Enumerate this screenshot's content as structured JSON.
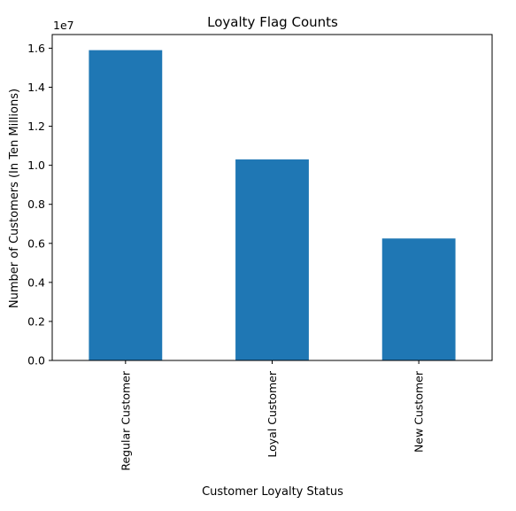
{
  "chart_data": {
    "type": "bar",
    "title": "Loyalty Flag Counts",
    "xlabel": "Customer Loyalty Status",
    "ylabel": "Number of Customers (In Ten Millions)",
    "y_offset_label": "1e7",
    "categories": [
      "Regular Customer",
      "Loyal Customer",
      "New Customer"
    ],
    "values": [
      15900000,
      10300000,
      6250000
    ],
    "ylim": [
      0,
      16700000
    ],
    "yticks": [
      0,
      2000000,
      4000000,
      6000000,
      8000000,
      10000000,
      12000000,
      14000000,
      16000000
    ],
    "ytick_labels": [
      "0.0",
      "0.2",
      "0.4",
      "0.6",
      "0.8",
      "1.0",
      "1.2",
      "1.4",
      "1.6"
    ],
    "grid": false,
    "bar_color": "#1f77b4"
  }
}
